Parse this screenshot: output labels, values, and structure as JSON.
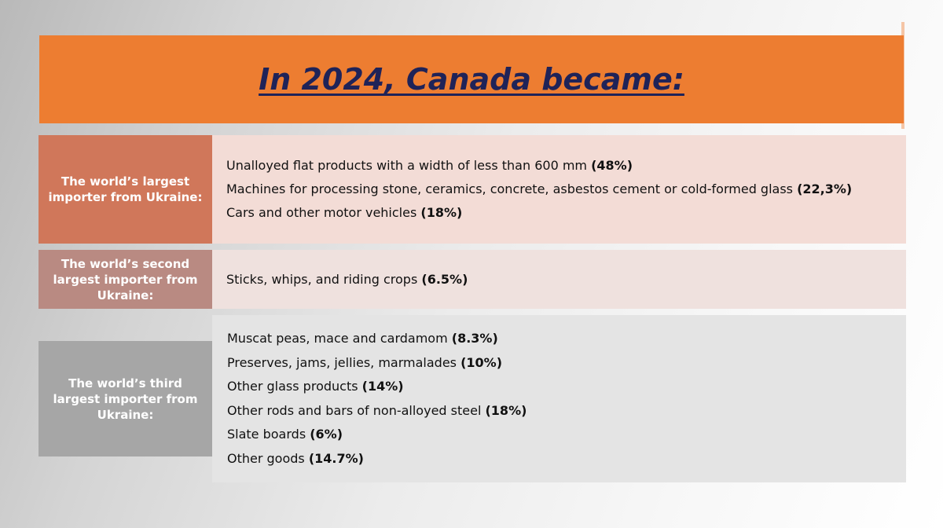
{
  "title": "In 2024, Canada became:",
  "sections": [
    {
      "label": "The world’s largest importer from Ukraine:",
      "items": [
        {
          "text": "Unalloyed flat products with a width of less than 600 mm ",
          "pct": "(48%)"
        },
        {
          "text": "Machines for processing stone, ceramics, concrete, asbestos cement or cold-formed glass ",
          "pct": "(22,3%)"
        },
        {
          "text": "Cars and other motor vehicles ",
          "pct": "(18%)"
        }
      ]
    },
    {
      "label": "The world’s second largest importer from Ukraine:",
      "items": [
        {
          "text": "Sticks, whips, and riding crops ",
          "pct": "(6.5%)"
        }
      ]
    },
    {
      "label": "The world’s third largest importer from Ukraine:",
      "items": [
        {
          "text": "Muscat peas, mace and cardamom ",
          "pct": "(8.3%)"
        },
        {
          "text": "Preserves, jams, jellies, marmalades ",
          "pct": "(10%)"
        },
        {
          "text": "Other glass products ",
          "pct": "(14%)"
        },
        {
          "text": "Other rods and bars of non-alloyed steel ",
          "pct": "(18%)"
        },
        {
          "text": "Slate boards ",
          "pct": "(6%)"
        },
        {
          "text": "Other goods ",
          "pct": "(14.7%)"
        }
      ]
    }
  ],
  "colors": {
    "title_bar": "#ed7d31",
    "title_text": "#1f2358",
    "section1_label": "#d0775a",
    "section1_content": "#f3dcd6",
    "section2_label": "#b98a82",
    "section2_content": "#efe1de",
    "section3_label": "#a6a6a6",
    "section3_content": "#e4e4e4"
  }
}
